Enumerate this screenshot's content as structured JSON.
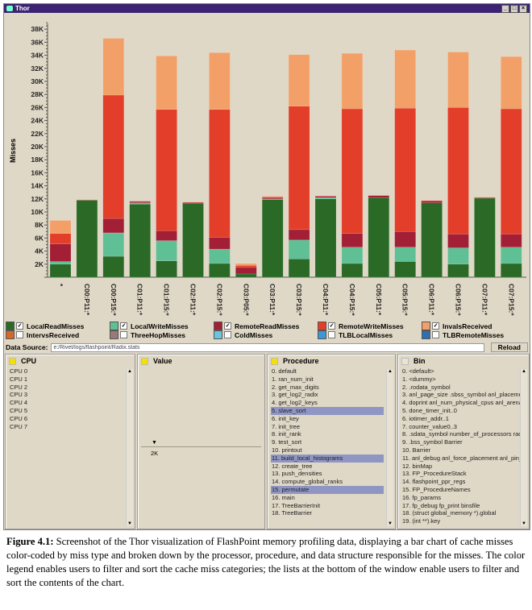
{
  "window": {
    "title": "Thor"
  },
  "chart_data": {
    "type": "bar",
    "stacked": true,
    "ylabel": "Misses",
    "ylim": [
      0,
      40000
    ],
    "yticks": [
      "2K",
      "4K",
      "6K",
      "8K",
      "10K",
      "12K",
      "14K",
      "16K",
      "18K",
      "20K",
      "22K",
      "24K",
      "26K",
      "28K",
      "30K",
      "32K",
      "34K",
      "36K",
      "38K"
    ],
    "categories": [
      "*",
      "C00:P11:*",
      "C00:P15:*",
      "C01:P11:*",
      "C01:P15:*",
      "C02:P11:*",
      "C02:P15:*",
      "C03:P05:*",
      "C03:P11:*",
      "C03:P15:*",
      "C04:P11:*",
      "C04:P15:*",
      "C05:P11:*",
      "C05:P15:*",
      "C06:P11:*",
      "C06:P15:*",
      "C07:P11:*",
      "C07:P15:*"
    ],
    "series": [
      {
        "name": "LocalReadMisses",
        "color": "#2a6a26",
        "values": [
          2000,
          11800,
          3200,
          11200,
          2500,
          11300,
          2100,
          500,
          11900,
          2800,
          12000,
          2100,
          12200,
          2400,
          11400,
          2000,
          12100,
          2100
        ]
      },
      {
        "name": "LocalWriteMisses",
        "color": "#5fbf95",
        "values": [
          400,
          0,
          3600,
          200,
          3100,
          0,
          2200,
          0,
          100,
          2900,
          200,
          2500,
          0,
          2200,
          0,
          2500,
          0,
          2500
        ]
      },
      {
        "name": "RemoteReadMisses",
        "color": "#a31f35",
        "values": [
          2700,
          0,
          2200,
          200,
          1500,
          150,
          1800,
          1000,
          200,
          1600,
          200,
          2100,
          300,
          2400,
          300,
          2100,
          100,
          2000
        ]
      },
      {
        "name": "RemoteWriteMisses",
        "color": "#e33e2a",
        "values": [
          1600,
          50,
          18900,
          50,
          18600,
          50,
          19600,
          300,
          100,
          18900,
          50,
          19100,
          50,
          18900,
          50,
          19400,
          50,
          19200
        ]
      },
      {
        "name": "InvalsReceived",
        "color": "#f2a068",
        "values": [
          2000,
          50,
          8700,
          0,
          8200,
          50,
          8700,
          300,
          100,
          7900,
          0,
          8500,
          50,
          8900,
          50,
          8500,
          50,
          8000
        ]
      }
    ]
  },
  "legend": [
    [
      {
        "label": "LocalReadMisses",
        "color": "#2a6a26",
        "checked": true
      },
      {
        "label": "LocalWriteMisses",
        "color": "#5fbf95",
        "checked": true
      },
      {
        "label": "RemoteReadMisses",
        "color": "#a31f35",
        "checked": true
      },
      {
        "label": "RemoteWriteMisses",
        "color": "#e33e2a",
        "checked": true
      },
      {
        "label": "InvalsReceived",
        "color": "#f2a068",
        "checked": true
      }
    ],
    [
      {
        "label": "IntervsReceived",
        "color": "#d6672b",
        "checked": false
      },
      {
        "label": "ThreeHopMisses",
        "color": "#9a7a78",
        "checked": false
      },
      {
        "label": "ColdMisses",
        "color": "#6ac5dd",
        "checked": false
      },
      {
        "label": "TLBLocalMisses",
        "color": "#3a98d4",
        "checked": false
      },
      {
        "label": "TLBRemoteMisses",
        "color": "#2f6fb0",
        "checked": false
      }
    ]
  ],
  "datasource": {
    "label": "Data Source:",
    "value": "e:/Rivet/logs/flashpoint/Radix.stats",
    "reload": "Reload"
  },
  "panels": {
    "cpu": {
      "title": "CPU",
      "items": [
        "CPU 0",
        "CPU 1",
        "CPU 2",
        "CPU 3",
        "CPU 4",
        "CPU 5",
        "CPU 6",
        "CPU 7"
      ]
    },
    "value": {
      "title": "Value",
      "marker": "2K"
    },
    "procedure": {
      "title": "Procedure",
      "items": [
        "0. default",
        "1. ran_num_init",
        "2. get_max_digits",
        "3. get_log2_radix",
        "4. get_log2_keys",
        "5. slave_sort",
        "6. init_key",
        "7. init_tree",
        "8. init_rank",
        "9. test_sort",
        "10. printout",
        "11. build_local_histograms",
        "12. create_tree",
        "13. push_densities",
        "14. compute_global_ranks",
        "15. permutate",
        "16. main",
        "17. TreeBarrierInit",
        "18. TreeBarrier"
      ],
      "selected": [
        5,
        11,
        15
      ]
    },
    "bin": {
      "title": "Bin",
      "items": [
        "0. <default>",
        "1. <dummy>",
        "2. .rodata_symbol",
        "3. anl_page_size .sbss_symbol anl_placeme",
        "4. doprint anl_num_physical_cpus anl_arena (",
        "5. done_timer_init..0",
        "6. iotimer_addr..1",
        "7. counter_value0..3",
        "8. .sdata_symbol number_of_processors radi",
        "9. .bss_symbol Barrier",
        "10. Barrier",
        "11. anl_debug anl_force_placement anl_pin_r",
        "12. binMap",
        "13. FP_ProcedureStack",
        "14. flashpoint_ppr_regs",
        "15. FP_ProcedureNames",
        "16. fp_params",
        "17. fp_debug fp_print binsfile",
        "18. (struct global_memory *).global",
        "19. (int **).key"
      ]
    }
  },
  "caption": {
    "label": "Figure 4.1:",
    "text": " Screenshot of the Thor visualization of FlashPoint memory profiling data, displaying a bar chart of cache misses color-coded by miss type and broken down by the processor, procedure, and data structure responsible for the misses. The color legend enables users to filter and sort the cache miss categories; the lists at the bottom of the window enable users to filter and sort the contents of the chart."
  }
}
